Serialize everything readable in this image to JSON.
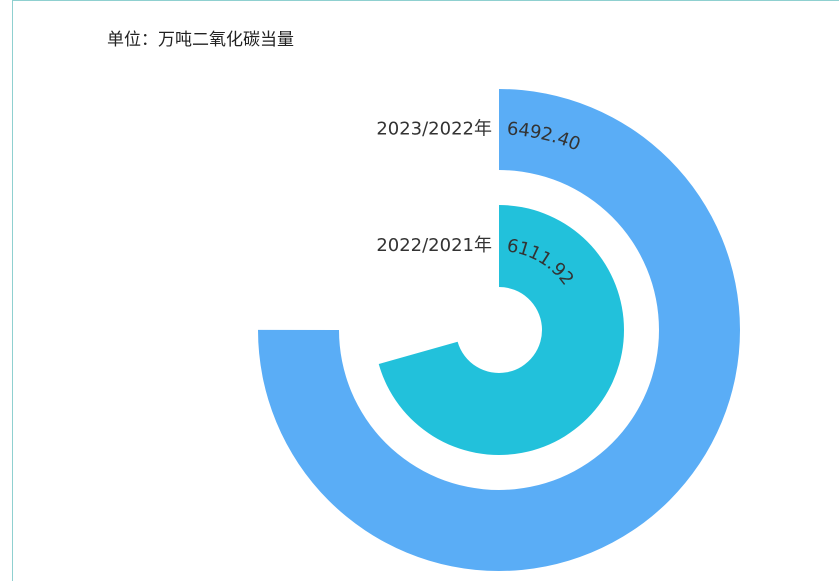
{
  "chart_data": {
    "type": "radial_bar",
    "title": "单位：万吨二氧化碳当量",
    "categories": [
      "2023/2022年",
      "2022/2021年"
    ],
    "values": [
      6492.4,
      6111.92
    ],
    "value_labels": [
      "6492.40",
      "6111.92"
    ],
    "colors": [
      "#5aadf6",
      "#22c1db"
    ],
    "xlim": [
      0,
      8656
    ]
  }
}
